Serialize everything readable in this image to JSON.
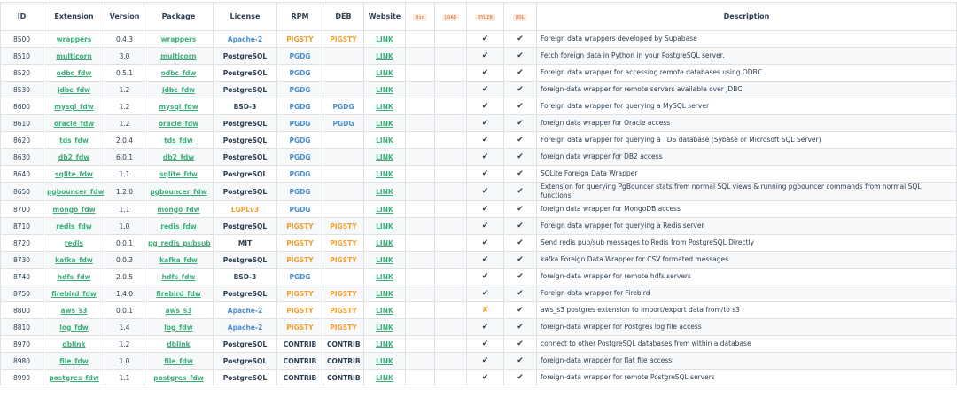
{
  "table": {
    "headers": [
      "ID",
      "Extension",
      "Version",
      "Package",
      "License",
      "RPM",
      "DEB",
      "Website",
      "Bin",
      "LOAD",
      "DYLIB",
      "DDL",
      "Description"
    ],
    "rows": [
      [
        "8500",
        "wrappers",
        "0.4.3",
        "wrappers",
        "Apache-2",
        "PIGSTY",
        "PIGSTY",
        "LINK",
        null,
        null,
        "✔",
        "✔",
        "Foreign data wrappers developed by Supabase"
      ],
      [
        "8510",
        "multicorn",
        "3.0",
        "multicorn",
        "PostgreSQL",
        "PGDG",
        null,
        "LINK",
        null,
        null,
        "✔",
        "✔",
        "Fetch foreign data in Python in your PostgreSQL server."
      ],
      [
        "8520",
        "odbc_fdw",
        "0.5.1",
        "odbc_fdw",
        "PostgreSQL",
        "PGDG",
        null,
        "LINK",
        null,
        null,
        "✔",
        "✔",
        "Foreign data wrapper for accessing remote databases using ODBC"
      ],
      [
        "8530",
        "jdbc_fdw",
        "1.2",
        "jdbc_fdw",
        "PostgreSQL",
        "PGDG",
        null,
        "LINK",
        null,
        null,
        "✔",
        "✔",
        "foreign-data wrapper for remote servers available over JDBC"
      ],
      [
        "8600",
        "mysql_fdw",
        "1.2",
        "mysql_fdw",
        "BSD-3",
        "PGDG",
        "PGDG",
        "LINK",
        null,
        null,
        "✔",
        "✔",
        "Foreign data wrapper for querying a MySQL server"
      ],
      [
        "8610",
        "oracle_fdw",
        "1.2",
        "oracle_fdw",
        "PostgreSQL",
        "PGDG",
        "PGDG",
        "LINK",
        null,
        null,
        "✔",
        "✔",
        "foreign data wrapper for Oracle access"
      ],
      [
        "8620",
        "tds_fdw",
        "2.0.4",
        "tds_fdw",
        "PostgreSQL",
        "PGDG",
        null,
        "LINK",
        null,
        null,
        "✔",
        "✔",
        "Foreign data wrapper for querying a TDS database (Sybase or Microsoft SQL Server)"
      ],
      [
        "8630",
        "db2_fdw",
        "6.0.1",
        "db2_fdw",
        "PostgreSQL",
        "PGDG",
        null,
        "LINK",
        null,
        null,
        "✔",
        "✔",
        "foreign data wrapper for DB2 access"
      ],
      [
        "8640",
        "sqlite_fdw",
        "1.1",
        "sqlite_fdw",
        "PostgreSQL",
        "PGDG",
        null,
        "LINK",
        null,
        null,
        "✔",
        "✔",
        "SQLite Foreign Data Wrapper"
      ],
      [
        "8650",
        "pgbouncer_fdw",
        "1.2.0",
        "pgbouncer_fdw",
        "PostgreSQL",
        "PGDG",
        null,
        "LINK",
        null,
        null,
        "✔",
        "✔",
        "Extension for querying PgBouncer stats from normal SQL views & running pgbouncer commands from normal SQL functions"
      ],
      [
        "8700",
        "mongo_fdw",
        "1.1",
        "mongo_fdw",
        "LGPLv3",
        "PGDG",
        null,
        "LINK",
        null,
        null,
        "✔",
        "✔",
        "foreign data wrapper for MongoDB access"
      ],
      [
        "8710",
        "redis_fdw",
        "1.0",
        "redis_fdw",
        "PostgreSQL",
        "PIGSTY",
        "PIGSTY",
        "LINK",
        null,
        null,
        "✔",
        "✔",
        "Foreign data wrapper for querying a Redis server"
      ],
      [
        "8720",
        "redis",
        "0.0.1",
        "pg_redis_pubsub",
        "MIT",
        "PIGSTY",
        "PIGSTY",
        "LINK",
        null,
        null,
        "✔",
        "✔",
        "Send redis pub/sub messages to Redis from PostgreSQL Directly"
      ],
      [
        "8730",
        "kafka_fdw",
        "0.0.3",
        "kafka_fdw",
        "PostgreSQL",
        "PIGSTY",
        "PIGSTY",
        "LINK",
        null,
        null,
        "✔",
        "✔",
        "kafka Foreign Data Wrapper for CSV formated messages"
      ],
      [
        "8740",
        "hdfs_fdw",
        "2.0.5",
        "hdfs_fdw",
        "BSD-3",
        "PGDG",
        null,
        "LINK",
        null,
        null,
        "✔",
        "✔",
        "foreign-data wrapper for remote hdfs servers"
      ],
      [
        "8750",
        "firebird_fdw",
        "1.4.0",
        "firebird_fdw",
        "PostgreSQL",
        "PIGSTY",
        "PIGSTY",
        "LINK",
        null,
        null,
        "✔",
        "✔",
        "Foreign data wrapper for Firebird"
      ],
      [
        "8800",
        "aws_s3",
        "0.0.1",
        "aws_s3",
        "Apache-2",
        "PIGSTY",
        "PIGSTY",
        "LINK",
        null,
        null,
        "✘",
        "✔",
        "aws_s3 postgres extension to import/export data from/to s3"
      ],
      [
        "8810",
        "log_fdw",
        "1.4",
        "log_fdw",
        "Apache-2",
        "PIGSTY",
        "PIGSTY",
        "LINK",
        null,
        null,
        "✔",
        "✔",
        "foreign-data wrapper for Postgres log file access"
      ],
      [
        "8970",
        "dblink",
        "1.2",
        "dblink",
        "PostgreSQL",
        "CONTRIB",
        "CONTRIB",
        "LINK",
        null,
        null,
        "✔",
        "✔",
        "connect to other PostgreSQL databases from within a database"
      ],
      [
        "8980",
        "file_fdw",
        "1.0",
        "file_fdw",
        "PostgreSQL",
        "CONTRIB",
        "CONTRIB",
        "LINK",
        null,
        null,
        "✔",
        "✔",
        "foreign-data wrapper for flat file access"
      ],
      [
        "8990",
        "postgres_fdw",
        "1.1",
        "postgres_fdw",
        "PostgreSQL",
        "CONTRIB",
        "CONTRIB",
        "LINK",
        null,
        null,
        "✔",
        "✔",
        "foreign-data wrapper for remote PostgreSQL servers"
      ]
    ],
    "tag_colors": {
      "Apache-2": "#4a8fd0",
      "PostgreSQL": "#2c3e50",
      "BSD-3": "#2c3e50",
      "MIT": "#2c3e50",
      "LGPLv3": "#f0a030",
      "PIGSTY": "#f0a030",
      "PGDG": "#4a8fd0",
      "CONTRIB": "#2c3e50",
      "✘": "#f0a030"
    }
  }
}
